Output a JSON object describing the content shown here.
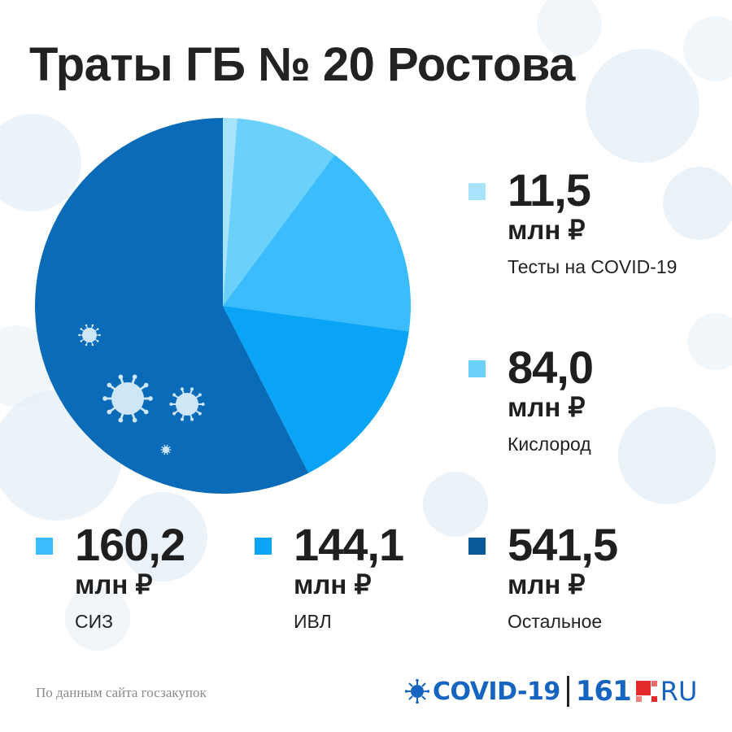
{
  "title": "Траты ГБ № 20 Ростова",
  "source_note": "По данным сайта госзакупок",
  "logo": {
    "covid_text": "COVID-19",
    "site_text": "161",
    "domain_text": "RU"
  },
  "unit": "млн ₽",
  "colors": {
    "tests": "#a7e3fb",
    "oxygen": "#6bd1fb",
    "siz": "#3bbcfd",
    "ivl": "#0aa4f6",
    "other": "#0a6bb8",
    "other_swatch": "#095a98",
    "logo_blue": "#1565c0",
    "logo_red": "#e32b2b"
  },
  "chart_data": {
    "type": "pie",
    "title": "Траты ГБ № 20 Ростова",
    "unit": "млн ₽",
    "start": "top",
    "direction": "clockwise",
    "categories": [
      "Тесты на COVID-19",
      "Кислород",
      "СИЗ",
      "ИВЛ",
      "Остальное"
    ],
    "values": [
      11.5,
      84.0,
      160.2,
      144.1,
      541.5
    ],
    "value_labels": [
      "11,5",
      "84,0",
      "160,2",
      "144,1",
      "541,5"
    ],
    "legend": "right-and-bottom"
  }
}
